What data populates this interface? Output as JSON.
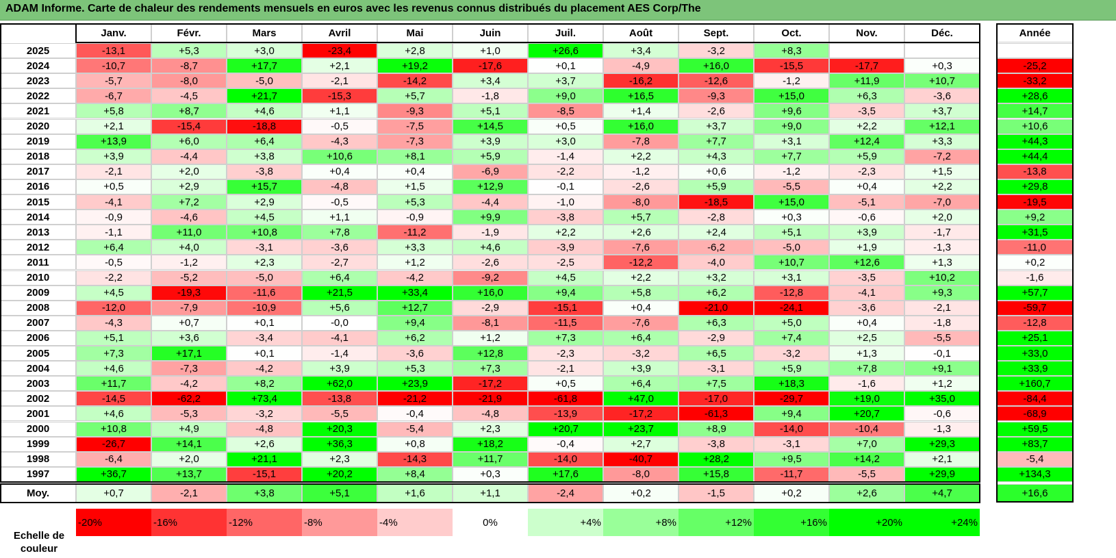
{
  "title": "ADAM Informe. Carte de chaleur des rendements mensuels en euros avec les revenus connus distribués du placement AES Corp/The",
  "chart_data": {
    "type": "heatmap",
    "months": [
      "Janv.",
      "Févr.",
      "Mars",
      "Avril",
      "Mai",
      "Juin",
      "Juil.",
      "Août",
      "Sept.",
      "Oct.",
      "Nov.",
      "Déc."
    ],
    "year_header": "Année",
    "rows": [
      {
        "year": "2025",
        "values": [
          "-13,1",
          "+5,3",
          "+3,0",
          "-23,4",
          "+2,8",
          "+1,0",
          "+26,6",
          "+3,4",
          "-3,2",
          "+8,3",
          "",
          ""
        ],
        "annual": ""
      },
      {
        "year": "2024",
        "values": [
          "-10,7",
          "-8,7",
          "+17,7",
          "+2,1",
          "+19,2",
          "-17,6",
          "+0,1",
          "-4,9",
          "+16,0",
          "-15,5",
          "-17,7",
          "+0,3"
        ],
        "annual": "-25,2"
      },
      {
        "year": "2023",
        "values": [
          "-5,7",
          "-8,0",
          "-5,0",
          "-2,1",
          "-14,2",
          "+3,4",
          "+3,7",
          "-16,2",
          "-12,6",
          "-1,2",
          "+11,9",
          "+10,7"
        ],
        "annual": "-33,2"
      },
      {
        "year": "2022",
        "values": [
          "-6,7",
          "-4,5",
          "+21,7",
          "-15,3",
          "+5,7",
          "-1,8",
          "+9,0",
          "+16,5",
          "-9,3",
          "+15,0",
          "+6,3",
          "-3,6"
        ],
        "annual": "+28,6"
      },
      {
        "year": "2021",
        "values": [
          "+5,8",
          "+8,7",
          "+4,6",
          "+1,1",
          "-9,3",
          "+5,1",
          "-8,5",
          "+1,4",
          "-2,6",
          "+9,6",
          "-3,5",
          "+3,7"
        ],
        "annual": "+14,7"
      },
      {
        "year": "2020",
        "values": [
          "+2,1",
          "-15,4",
          "-18,8",
          "-0,5",
          "-7,5",
          "+14,5",
          "+0,5",
          "+16,0",
          "+3,7",
          "+9,0",
          "+2,2",
          "+12,1"
        ],
        "annual": "+10,6"
      },
      {
        "year": "2019",
        "values": [
          "+13,9",
          "+6,0",
          "+6,4",
          "-4,3",
          "-7,3",
          "+3,9",
          "+3,0",
          "-7,8",
          "+7,7",
          "+3,1",
          "+12,4",
          "+3,3"
        ],
        "annual": "+44,3"
      },
      {
        "year": "2018",
        "values": [
          "+3,9",
          "-4,4",
          "+3,8",
          "+10,6",
          "+8,1",
          "+5,9",
          "-1,4",
          "+2,2",
          "+4,3",
          "+7,7",
          "+5,9",
          "-7,2"
        ],
        "annual": "+44,4"
      },
      {
        "year": "2017",
        "values": [
          "-2,1",
          "+2,0",
          "-3,8",
          "+0,4",
          "+0,4",
          "-6,9",
          "-2,2",
          "-1,2",
          "+0,6",
          "-1,2",
          "-2,3",
          "+1,5"
        ],
        "annual": "-13,8"
      },
      {
        "year": "2016",
        "values": [
          "+0,5",
          "+2,9",
          "+15,7",
          "-4,8",
          "+1,5",
          "+12,9",
          "-0,1",
          "-2,6",
          "+5,9",
          "-5,5",
          "+0,4",
          "+2,2"
        ],
        "annual": "+29,8"
      },
      {
        "year": "2015",
        "values": [
          "-4,1",
          "+7,2",
          "+2,9",
          "-0,5",
          "+5,3",
          "-4,4",
          "-1,0",
          "-8,0",
          "-18,5",
          "+15,0",
          "-5,1",
          "-7,0"
        ],
        "annual": "-19,5"
      },
      {
        "year": "2014",
        "values": [
          "-0,9",
          "-4,6",
          "+4,5",
          "+1,1",
          "-0,9",
          "+9,9",
          "-3,8",
          "+5,7",
          "-2,8",
          "+0,3",
          "-0,6",
          "+2,0"
        ],
        "annual": "+9,2"
      },
      {
        "year": "2013",
        "values": [
          "-1,1",
          "+11,0",
          "+10,8",
          "+7,8",
          "-11,2",
          "-1,9",
          "+2,2",
          "+2,6",
          "+2,4",
          "+5,1",
          "+3,9",
          "-1,7"
        ],
        "annual": "+31,5"
      },
      {
        "year": "2012",
        "values": [
          "+6,4",
          "+4,0",
          "-3,1",
          "-3,6",
          "+3,3",
          "+4,6",
          "-3,9",
          "-7,6",
          "-6,2",
          "-5,0",
          "+1,9",
          "-1,3"
        ],
        "annual": "-11,0"
      },
      {
        "year": "2011",
        "values": [
          "-0,5",
          "-1,2",
          "+2,3",
          "-2,7",
          "+1,2",
          "-2,6",
          "-2,5",
          "-12,2",
          "-4,0",
          "+10,7",
          "+12,6",
          "+1,3"
        ],
        "annual": "+0,2"
      },
      {
        "year": "2010",
        "values": [
          "-2,2",
          "-5,2",
          "-5,0",
          "+6,4",
          "-4,2",
          "-9,2",
          "+4,5",
          "+2,2",
          "+3,2",
          "+3,1",
          "-3,5",
          "+10,2"
        ],
        "annual": "-1,6"
      },
      {
        "year": "2009",
        "values": [
          "+4,5",
          "-19,3",
          "-11,6",
          "+21,5",
          "+33,4",
          "+16,0",
          "+9,4",
          "+5,8",
          "+6,2",
          "-12,8",
          "-4,1",
          "+9,3"
        ],
        "annual": "+57,7"
      },
      {
        "year": "2008",
        "values": [
          "-12,0",
          "-7,9",
          "-10,9",
          "+5,6",
          "+12,7",
          "-2,9",
          "-15,1",
          "+0,4",
          "-21,0",
          "-24,1",
          "-3,6",
          "-2,1"
        ],
        "annual": "-59,7"
      },
      {
        "year": "2007",
        "values": [
          "-4,3",
          "+0,7",
          "+0,1",
          "-0,0",
          "+9,4",
          "-8,1",
          "-11,5",
          "-7,6",
          "+6,3",
          "+5,0",
          "+0,4",
          "-1,8"
        ],
        "annual": "-12,8"
      },
      {
        "year": "2006",
        "values": [
          "+5,1",
          "+3,6",
          "-3,4",
          "-4,1",
          "+6,2",
          "+1,2",
          "+7,3",
          "+6,4",
          "-2,9",
          "+7,4",
          "+2,5",
          "-5,5"
        ],
        "annual": "+25,1"
      },
      {
        "year": "2005",
        "values": [
          "+7,3",
          "+17,1",
          "+0,1",
          "-1,4",
          "-3,6",
          "+12,8",
          "-2,3",
          "-3,2",
          "+6,5",
          "-3,2",
          "+1,3",
          "-0,1"
        ],
        "annual": "+33,0"
      },
      {
        "year": "2004",
        "values": [
          "+4,6",
          "-7,3",
          "-4,2",
          "+3,9",
          "+5,3",
          "+7,3",
          "-2,1",
          "+3,9",
          "-3,1",
          "+5,9",
          "+7,8",
          "+9,1"
        ],
        "annual": "+33,9"
      },
      {
        "year": "2003",
        "values": [
          "+11,7",
          "-4,2",
          "+8,2",
          "+62,0",
          "+23,9",
          "-17,2",
          "+0,5",
          "+6,4",
          "+7,5",
          "+18,3",
          "-1,6",
          "+1,2"
        ],
        "annual": "+160,7"
      },
      {
        "year": "2002",
        "values": [
          "-14,5",
          "-62,2",
          "+73,4",
          "-13,8",
          "-21,2",
          "-21,9",
          "-61,8",
          "+47,0",
          "-17,0",
          "-29,7",
          "+19,0",
          "+35,0"
        ],
        "annual": "-84,4"
      },
      {
        "year": "2001",
        "values": [
          "+4,6",
          "-5,3",
          "-3,2",
          "-5,5",
          "-0,4",
          "-4,8",
          "-13,9",
          "-17,2",
          "-61,3",
          "+9,4",
          "+20,7",
          "-0,6"
        ],
        "annual": "-68,9"
      },
      {
        "year": "2000",
        "values": [
          "+10,8",
          "+4,9",
          "-4,8",
          "+20,3",
          "-5,4",
          "+2,3",
          "+20,7",
          "+23,7",
          "+8,9",
          "-14,0",
          "-10,4",
          "-1,3"
        ],
        "annual": "+59,5"
      },
      {
        "year": "1999",
        "values": [
          "-26,7",
          "+14,1",
          "+2,6",
          "+36,3",
          "+0,8",
          "+18,2",
          "-0,4",
          "+2,7",
          "-3,8",
          "-3,1",
          "+7,0",
          "+29,3"
        ],
        "annual": "+83,7"
      },
      {
        "year": "1998",
        "values": [
          "-6,4",
          "+2,0",
          "+21,1",
          "+2,3",
          "-14,3",
          "+11,7",
          "-14,0",
          "-40,7",
          "+28,2",
          "+9,5",
          "+14,2",
          "+2,1"
        ],
        "annual": "-5,4"
      },
      {
        "year": "1997",
        "values": [
          "+36,7",
          "+13,7",
          "-15,1",
          "+20,2",
          "+8,4",
          "+0,3",
          "+17,6",
          "-8,0",
          "+15,8",
          "-11,7",
          "-5,5",
          "+29,9"
        ],
        "annual": "+134,3"
      }
    ],
    "average": {
      "label": "Moy.",
      "values": [
        "+0,7",
        "-2,1",
        "+3,8",
        "+5,1",
        "+1,6",
        "+1,1",
        "-2,4",
        "+0,2",
        "-1,5",
        "+0,2",
        "+2,6",
        "+4,7"
      ],
      "annual": "+16,6"
    },
    "scale": {
      "label_line1": "Echelle de",
      "label_line2": "couleur",
      "items": [
        {
          "text": "-20%",
          "value": -20
        },
        {
          "text": "-16%",
          "value": -16
        },
        {
          "text": "-12%",
          "value": -12
        },
        {
          "text": "-8%",
          "value": -8
        },
        {
          "text": "-4%",
          "value": -4
        },
        {
          "text": "0%",
          "value": 0
        },
        {
          "text": "+4%",
          "value": 4
        },
        {
          "text": "+8%",
          "value": 8
        },
        {
          "text": "+12%",
          "value": 12
        },
        {
          "text": "+16%",
          "value": 16
        },
        {
          "text": "+20%",
          "value": 20
        },
        {
          "text": "+24%",
          "value": 24
        }
      ]
    },
    "colors": {
      "negative_max": "#ff0000",
      "neutral": "#ffffff",
      "positive_max": "#00ff00",
      "title_bar": "#7dc47a"
    }
  }
}
